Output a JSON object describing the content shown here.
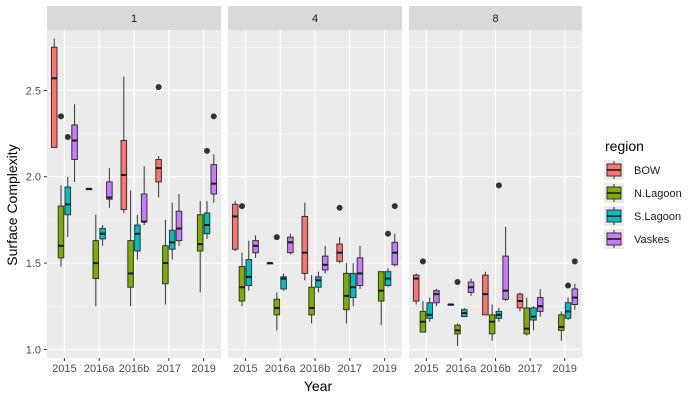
{
  "chart_data": {
    "type": "box",
    "facet_variable": "site",
    "xlabel": "Year",
    "ylabel": "Surface Complexity",
    "ylim": [
      0.95,
      2.85
    ],
    "y_ticks": [
      1.0,
      1.5,
      2.0,
      2.5
    ],
    "y_tick_labels": [
      "1.0",
      "1.5",
      "2.0",
      "2.5"
    ],
    "grid": true,
    "legend": {
      "title": "region",
      "placement": "right",
      "entries": [
        "BOW",
        "N.Lagoon",
        "S.Lagoon",
        "Vaskes"
      ]
    },
    "colors": {
      "BOW": "#F8766D",
      "N.Lagoon": "#7CAE00",
      "S.Lagoon": "#00BFC4",
      "Vaskes": "#C77CFF",
      "panel_bg": "#EBEBEB",
      "strip_bg": "#D9D9D9",
      "grid": "#FFFFFF"
    },
    "categories": [
      "2015",
      "2016a",
      "2016b",
      "2017",
      "2019"
    ],
    "panels": [
      {
        "label": "1",
        "boxes": [
          {
            "year": "2015",
            "region": "BOW",
            "min": 2.17,
            "q1": 2.17,
            "median": 2.57,
            "q3": 2.75,
            "max": 2.8,
            "outliers": []
          },
          {
            "year": "2015",
            "region": "N.Lagoon",
            "min": 1.48,
            "q1": 1.53,
            "median": 1.6,
            "q3": 1.83,
            "max": 1.95,
            "outliers": [
              2.35
            ]
          },
          {
            "year": "2015",
            "region": "S.Lagoon",
            "min": 1.65,
            "q1": 1.78,
            "median": 1.84,
            "q3": 1.94,
            "max": 2.0,
            "outliers": [
              2.23
            ]
          },
          {
            "year": "2015",
            "region": "Vaskes",
            "min": 1.97,
            "q1": 2.1,
            "median": 2.21,
            "q3": 2.3,
            "max": 2.42,
            "outliers": []
          },
          {
            "year": "2016a",
            "region": "BOW",
            "min": 1.93,
            "q1": 1.93,
            "median": 1.93,
            "q3": 1.93,
            "max": 1.93,
            "outliers": []
          },
          {
            "year": "2016a",
            "region": "N.Lagoon",
            "min": 1.25,
            "q1": 1.41,
            "median": 1.5,
            "q3": 1.63,
            "max": 1.78,
            "outliers": []
          },
          {
            "year": "2016a",
            "region": "S.Lagoon",
            "min": 1.6,
            "q1": 1.64,
            "median": 1.67,
            "q3": 1.7,
            "max": 1.72,
            "outliers": []
          },
          {
            "year": "2016a",
            "region": "Vaskes",
            "min": 1.82,
            "q1": 1.87,
            "median": 1.88,
            "q3": 1.97,
            "max": 2.05,
            "outliers": []
          },
          {
            "year": "2016b",
            "region": "BOW",
            "min": 1.79,
            "q1": 1.81,
            "median": 2.01,
            "q3": 2.21,
            "max": 2.58,
            "outliers": []
          },
          {
            "year": "2016b",
            "region": "N.Lagoon",
            "min": 1.25,
            "q1": 1.36,
            "median": 1.44,
            "q3": 1.63,
            "max": 1.92,
            "outliers": []
          },
          {
            "year": "2016b",
            "region": "S.Lagoon",
            "min": 1.52,
            "q1": 1.57,
            "median": 1.67,
            "q3": 1.72,
            "max": 1.78,
            "outliers": []
          },
          {
            "year": "2016b",
            "region": "Vaskes",
            "min": 1.72,
            "q1": 1.74,
            "median": 1.74,
            "q3": 1.9,
            "max": 2.06,
            "outliers": []
          },
          {
            "year": "2017",
            "region": "BOW",
            "min": 1.88,
            "q1": 1.97,
            "median": 2.05,
            "q3": 2.1,
            "max": 2.12,
            "outliers": [
              2.52
            ]
          },
          {
            "year": "2017",
            "region": "N.Lagoon",
            "min": 1.26,
            "q1": 1.38,
            "median": 1.5,
            "q3": 1.6,
            "max": 1.75,
            "outliers": []
          },
          {
            "year": "2017",
            "region": "S.Lagoon",
            "min": 1.52,
            "q1": 1.58,
            "median": 1.62,
            "q3": 1.69,
            "max": 1.85,
            "outliers": []
          },
          {
            "year": "2017",
            "region": "Vaskes",
            "min": 1.6,
            "q1": 1.63,
            "median": 1.7,
            "q3": 1.8,
            "max": 1.9,
            "outliers": []
          },
          {
            "year": "2019",
            "region": "N.Lagoon",
            "min": 1.33,
            "q1": 1.57,
            "median": 1.61,
            "q3": 1.78,
            "max": 1.86,
            "outliers": []
          },
          {
            "year": "2019",
            "region": "S.Lagoon",
            "min": 1.64,
            "q1": 1.67,
            "median": 1.72,
            "q3": 1.79,
            "max": 1.86,
            "outliers": [
              2.15
            ]
          },
          {
            "year": "2019",
            "region": "Vaskes",
            "min": 1.85,
            "q1": 1.9,
            "median": 1.96,
            "q3": 2.07,
            "max": 2.13,
            "outliers": [
              2.35
            ]
          }
        ]
      },
      {
        "label": "4",
        "boxes": [
          {
            "year": "2015",
            "region": "BOW",
            "min": 1.57,
            "q1": 1.58,
            "median": 1.77,
            "q3": 1.84,
            "max": 1.86,
            "outliers": []
          },
          {
            "year": "2015",
            "region": "N.Lagoon",
            "min": 1.25,
            "q1": 1.28,
            "median": 1.36,
            "q3": 1.48,
            "max": 1.56,
            "outliers": [
              1.83
            ]
          },
          {
            "year": "2015",
            "region": "S.Lagoon",
            "min": 1.34,
            "q1": 1.37,
            "median": 1.42,
            "q3": 1.52,
            "max": 1.63,
            "outliers": []
          },
          {
            "year": "2015",
            "region": "Vaskes",
            "min": 1.53,
            "q1": 1.56,
            "median": 1.6,
            "q3": 1.63,
            "max": 1.66,
            "outliers": []
          },
          {
            "year": "2016a",
            "region": "BOW",
            "min": 1.5,
            "q1": 1.5,
            "median": 1.5,
            "q3": 1.5,
            "max": 1.5,
            "outliers": []
          },
          {
            "year": "2016a",
            "region": "N.Lagoon",
            "min": 1.11,
            "q1": 1.2,
            "median": 1.24,
            "q3": 1.29,
            "max": 1.33,
            "outliers": [
              1.65
            ]
          },
          {
            "year": "2016a",
            "region": "S.Lagoon",
            "min": 1.34,
            "q1": 1.35,
            "median": 1.41,
            "q3": 1.42,
            "max": 1.44,
            "outliers": []
          },
          {
            "year": "2016a",
            "region": "Vaskes",
            "min": 1.55,
            "q1": 1.56,
            "median": 1.62,
            "q3": 1.65,
            "max": 1.67,
            "outliers": []
          },
          {
            "year": "2016b",
            "region": "BOW",
            "min": 1.4,
            "q1": 1.44,
            "median": 1.56,
            "q3": 1.77,
            "max": 1.85,
            "outliers": []
          },
          {
            "year": "2016b",
            "region": "N.Lagoon",
            "min": 1.15,
            "q1": 1.2,
            "median": 1.24,
            "q3": 1.36,
            "max": 1.43,
            "outliers": []
          },
          {
            "year": "2016b",
            "region": "S.Lagoon",
            "min": 1.33,
            "q1": 1.36,
            "median": 1.4,
            "q3": 1.42,
            "max": 1.45,
            "outliers": []
          },
          {
            "year": "2016b",
            "region": "Vaskes",
            "min": 1.44,
            "q1": 1.46,
            "median": 1.49,
            "q3": 1.54,
            "max": 1.6,
            "outliers": []
          },
          {
            "year": "2017",
            "region": "BOW",
            "min": 1.5,
            "q1": 1.51,
            "median": 1.56,
            "q3": 1.61,
            "max": 1.65,
            "outliers": [
              1.82
            ]
          },
          {
            "year": "2017",
            "region": "N.Lagoon",
            "min": 1.15,
            "q1": 1.23,
            "median": 1.31,
            "q3": 1.44,
            "max": 1.5,
            "outliers": []
          },
          {
            "year": "2017",
            "region": "S.Lagoon",
            "min": 1.25,
            "q1": 1.3,
            "median": 1.36,
            "q3": 1.44,
            "max": 1.5,
            "outliers": []
          },
          {
            "year": "2017",
            "region": "Vaskes",
            "min": 1.35,
            "q1": 1.37,
            "median": 1.44,
            "q3": 1.53,
            "max": 1.6,
            "outliers": []
          },
          {
            "year": "2019",
            "region": "N.Lagoon",
            "min": 1.14,
            "q1": 1.28,
            "median": 1.34,
            "q3": 1.45,
            "max": 1.45,
            "outliers": []
          },
          {
            "year": "2019",
            "region": "S.Lagoon",
            "min": 1.36,
            "q1": 1.37,
            "median": 1.41,
            "q3": 1.45,
            "max": 1.47,
            "outliers": [
              1.67
            ]
          },
          {
            "year": "2019",
            "region": "Vaskes",
            "min": 1.48,
            "q1": 1.49,
            "median": 1.56,
            "q3": 1.62,
            "max": 1.67,
            "outliers": [
              1.83
            ]
          }
        ]
      },
      {
        "label": "8",
        "boxes": [
          {
            "year": "2015",
            "region": "BOW",
            "min": 1.26,
            "q1": 1.28,
            "median": 1.41,
            "q3": 1.43,
            "max": 1.44,
            "outliers": []
          },
          {
            "year": "2015",
            "region": "N.Lagoon",
            "min": 1.1,
            "q1": 1.1,
            "median": 1.16,
            "q3": 1.22,
            "max": 1.28,
            "outliers": [
              1.51
            ]
          },
          {
            "year": "2015",
            "region": "S.Lagoon",
            "min": 1.16,
            "q1": 1.18,
            "median": 1.2,
            "q3": 1.27,
            "max": 1.3,
            "outliers": []
          },
          {
            "year": "2015",
            "region": "Vaskes",
            "min": 1.25,
            "q1": 1.27,
            "median": 1.32,
            "q3": 1.34,
            "max": 1.35,
            "outliers": []
          },
          {
            "year": "2016a",
            "region": "BOW",
            "min": 1.26,
            "q1": 1.26,
            "median": 1.26,
            "q3": 1.26,
            "max": 1.26,
            "outliers": []
          },
          {
            "year": "2016a",
            "region": "N.Lagoon",
            "min": 1.02,
            "q1": 1.09,
            "median": 1.11,
            "q3": 1.14,
            "max": 1.15,
            "outliers": [
              1.39
            ]
          },
          {
            "year": "2016a",
            "region": "S.Lagoon",
            "min": 1.19,
            "q1": 1.19,
            "median": 1.21,
            "q3": 1.23,
            "max": 1.24,
            "outliers": []
          },
          {
            "year": "2016a",
            "region": "Vaskes",
            "min": 1.31,
            "q1": 1.33,
            "median": 1.36,
            "q3": 1.39,
            "max": 1.41,
            "outliers": []
          },
          {
            "year": "2016b",
            "region": "BOW",
            "min": 1.2,
            "q1": 1.2,
            "median": 1.32,
            "q3": 1.43,
            "max": 1.45,
            "outliers": []
          },
          {
            "year": "2016b",
            "region": "N.Lagoon",
            "min": 1.05,
            "q1": 1.09,
            "median": 1.16,
            "q3": 1.2,
            "max": 1.26,
            "outliers": []
          },
          {
            "year": "2016b",
            "region": "S.Lagoon",
            "min": 1.16,
            "q1": 1.18,
            "median": 1.2,
            "q3": 1.22,
            "max": 1.24,
            "outliers": [
              1.95
            ]
          },
          {
            "year": "2016b",
            "region": "Vaskes",
            "min": 1.28,
            "q1": 1.29,
            "median": 1.34,
            "q3": 1.54,
            "max": 1.71,
            "outliers": []
          },
          {
            "year": "2017",
            "region": "BOW",
            "min": 1.22,
            "q1": 1.24,
            "median": 1.28,
            "q3": 1.32,
            "max": 1.33,
            "outliers": []
          },
          {
            "year": "2017",
            "region": "N.Lagoon",
            "min": 1.08,
            "q1": 1.09,
            "median": 1.12,
            "q3": 1.24,
            "max": 1.3,
            "outliers": []
          },
          {
            "year": "2017",
            "region": "S.Lagoon",
            "min": 1.11,
            "q1": 1.17,
            "median": 1.19,
            "q3": 1.24,
            "max": 1.25,
            "outliers": []
          },
          {
            "year": "2017",
            "region": "Vaskes",
            "min": 1.19,
            "q1": 1.22,
            "median": 1.25,
            "q3": 1.3,
            "max": 1.35,
            "outliers": []
          },
          {
            "year": "2019",
            "region": "N.Lagoon",
            "min": 1.05,
            "q1": 1.11,
            "median": 1.13,
            "q3": 1.2,
            "max": 1.22,
            "outliers": []
          },
          {
            "year": "2019",
            "region": "S.Lagoon",
            "min": 1.17,
            "q1": 1.18,
            "median": 1.22,
            "q3": 1.27,
            "max": 1.3,
            "outliers": [
              1.37
            ]
          },
          {
            "year": "2019",
            "region": "Vaskes",
            "min": 1.23,
            "q1": 1.26,
            "median": 1.3,
            "q3": 1.35,
            "max": 1.38,
            "outliers": [
              1.51
            ]
          }
        ]
      }
    ]
  }
}
